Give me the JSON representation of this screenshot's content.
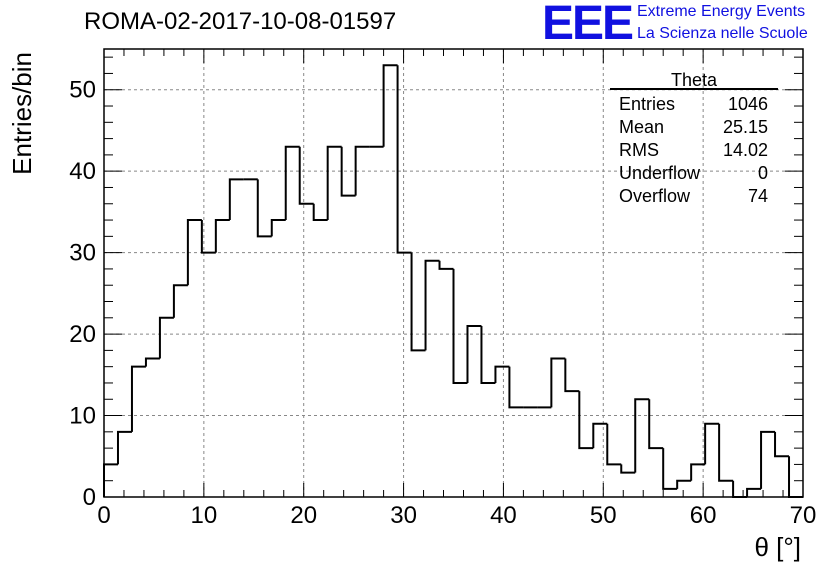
{
  "header": {
    "title": "ROMA-02-2017-10-08-01597",
    "logo_text": "EEE",
    "logo_line1": "Extreme Energy Events",
    "logo_line2": "La Scienza nelle Scuole"
  },
  "stats": {
    "name": "Theta",
    "rows": [
      {
        "label": "Entries",
        "value": "1046"
      },
      {
        "label": "Mean",
        "value": "25.15"
      },
      {
        "label": "RMS",
        "value": "14.02"
      },
      {
        "label": "Underflow",
        "value": "0"
      },
      {
        "label": "Overflow",
        "value": "74"
      }
    ]
  },
  "colors": {
    "logo": "#1010e0",
    "line": "#000000",
    "grid": "#888888"
  },
  "chart_data": {
    "type": "histogram",
    "title": "ROMA-02-2017-10-08-01597",
    "xlabel": "θ [°]",
    "ylabel": "Entries/bin",
    "xlim": [
      0,
      70
    ],
    "ylim": [
      0,
      55
    ],
    "bin_width": 1.4,
    "x_ticks": [
      0,
      10,
      20,
      30,
      40,
      50,
      60,
      70
    ],
    "y_ticks": [
      0,
      10,
      20,
      30,
      40,
      50
    ],
    "grid": true,
    "values": [
      4,
      8,
      16,
      17,
      22,
      26,
      34,
      30,
      34,
      39,
      39,
      32,
      34,
      43,
      36,
      34,
      43,
      37,
      43,
      43,
      53,
      30,
      18,
      29,
      28,
      14,
      21,
      14,
      16,
      11,
      11,
      11,
      17,
      13,
      6,
      9,
      4,
      3,
      12,
      6,
      1,
      2,
      4,
      9,
      2,
      0,
      1,
      8,
      5,
      0
    ]
  }
}
